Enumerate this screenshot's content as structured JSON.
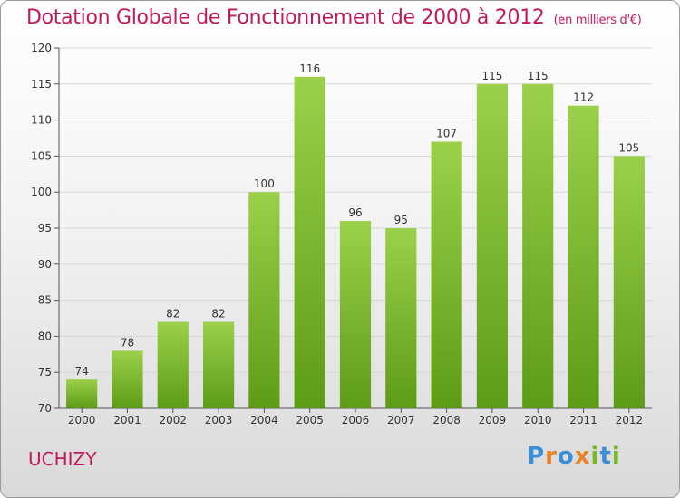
{
  "header": {
    "title": "Dotation Globale de Fonctionnement de 2000 à 2012",
    "unit": "(en milliers d'€)"
  },
  "footer": {
    "city": "UCHIZY",
    "brand_letters": [
      "P",
      "r",
      "o",
      "x",
      "i",
      "t",
      "i"
    ],
    "brand_colors": [
      "#3a8fd6",
      "#e8832a",
      "#3a8fd6",
      "#e8832a",
      "#7ab827",
      "#3a8fd6",
      "#7ab827"
    ]
  },
  "colors": {
    "title": "#c2185b",
    "bar_top": "#9bd04a",
    "bar_bottom": "#5e9c16",
    "grid": "#d6d6d6"
  },
  "chart_data": {
    "type": "bar",
    "title": "Dotation Globale de Fonctionnement de 2000 à 2012",
    "subtitle": "(en milliers d'€)",
    "categories": [
      "2000",
      "2001",
      "2002",
      "2003",
      "2004",
      "2005",
      "2006",
      "2007",
      "2008",
      "2009",
      "2010",
      "2011",
      "2012"
    ],
    "values": [
      74,
      78,
      82,
      82,
      100,
      116,
      96,
      95,
      107,
      115,
      115,
      112,
      105
    ],
    "ylim": [
      70,
      120
    ],
    "yticks": [
      70,
      75,
      80,
      85,
      90,
      95,
      100,
      105,
      110,
      115,
      120
    ],
    "grid": true,
    "xlabel": "",
    "ylabel": ""
  }
}
